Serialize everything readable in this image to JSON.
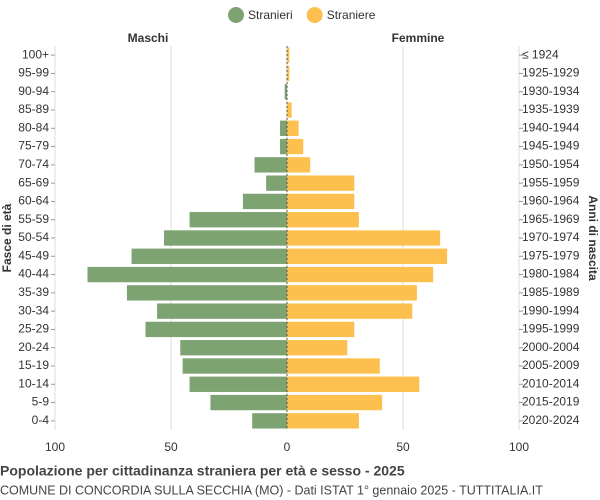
{
  "chart_data": {
    "type": "pyramid",
    "title": "Popolazione per cittadinanza straniera per età e sesso - 2025",
    "subtitle": "COMUNE DI CONCORDIA SULLA SECCHIA (MO) - Dati ISTAT 1° gennaio 2025 - TUTTITALIA.IT",
    "left_label": "Maschi",
    "right_label": "Femmine",
    "y_label": "Fasce di età",
    "y2_label": "Anni di nascita",
    "categories": [
      "100+",
      "95-99",
      "90-94",
      "85-89",
      "80-84",
      "75-79",
      "70-74",
      "65-69",
      "60-64",
      "55-59",
      "50-54",
      "45-49",
      "40-44",
      "35-39",
      "30-34",
      "25-29",
      "20-24",
      "15-19",
      "10-14",
      "5-9",
      "0-4"
    ],
    "birth_years": [
      "≤ 1924",
      "1925-1929",
      "1930-1934",
      "1935-1939",
      "1940-1944",
      "1945-1949",
      "1950-1954",
      "1955-1959",
      "1960-1964",
      "1965-1969",
      "1970-1974",
      "1975-1979",
      "1980-1984",
      "1985-1989",
      "1990-1994",
      "1995-1999",
      "2000-2004",
      "2005-2009",
      "2010-2014",
      "2015-2019",
      "2020-2024"
    ],
    "series": [
      {
        "name": "Stranieri",
        "color": "#7ea372",
        "side": "left",
        "values": [
          0,
          0,
          1,
          0,
          3,
          3,
          14,
          9,
          19,
          42,
          53,
          67,
          86,
          69,
          56,
          61,
          46,
          45,
          42,
          33,
          15
        ]
      },
      {
        "name": "Straniere",
        "color": "#fdc04e",
        "side": "right",
        "values": [
          1,
          1,
          0,
          2,
          5,
          7,
          10,
          29,
          29,
          31,
          66,
          69,
          63,
          56,
          54,
          29,
          26,
          40,
          57,
          41,
          31
        ]
      }
    ],
    "xlim": [
      0,
      100
    ],
    "xticks": [
      0,
      50,
      100
    ],
    "grid": true
  }
}
